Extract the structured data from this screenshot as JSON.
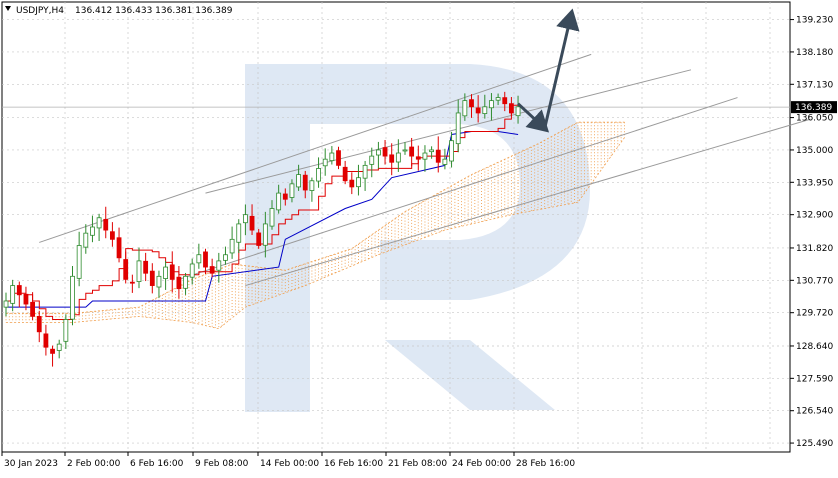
{
  "header": {
    "symbol": "USDJPY,H4",
    "ohlc": "136.412 136.433 136.381 136.389"
  },
  "chart_data": {
    "type": "candlestick",
    "symbol": "USDJPY",
    "timeframe": "H4",
    "title": "USDJPY,H4",
    "y_ticks": [
      "139.230",
      "138.180",
      "137.130",
      "136.050",
      "135.000",
      "133.950",
      "132.900",
      "131.820",
      "130.770",
      "129.720",
      "128.640",
      "127.590",
      "126.540",
      "125.490"
    ],
    "x_ticks": [
      "30 Jan 2023",
      "2 Feb 00:00",
      "6 Feb 16:00",
      "9 Feb 08:00",
      "14 Feb 00:00",
      "16 Feb 16:00",
      "21 Feb 08:00",
      "24 Feb 00:00",
      "28 Feb 16:00"
    ],
    "ylim": [
      125.49,
      139.8
    ],
    "grid": true,
    "current_price": "136.389",
    "colors": {
      "bull": "#2e8b2e",
      "bear": "#e00000",
      "tenkan": "#e00000",
      "kijun": "#0000c8",
      "cloud": "#f0a050",
      "channel": "#9a9a9a",
      "arrow": "#3a4a5a",
      "watermark": "#c8d8ec"
    },
    "close_path": [
      130.1,
      130.6,
      130.3,
      130.0,
      129.6,
      129.1,
      128.6,
      128.4,
      128.7,
      129.5,
      130.9,
      131.9,
      132.3,
      132.5,
      132.8,
      132.4,
      132.1,
      131.5,
      130.8,
      130.7,
      131.4,
      131.0,
      130.6,
      130.9,
      131.2,
      130.8,
      130.5,
      130.9,
      131.3,
      131.6,
      131.2,
      131.0,
      131.4,
      131.6,
      132.1,
      132.6,
      132.9,
      132.4,
      131.9,
      132.6,
      133.1,
      133.6,
      133.4,
      133.9,
      134.2,
      133.7,
      134.0,
      134.4,
      134.7,
      134.9,
      134.5,
      134.0,
      133.8,
      134.1,
      134.5,
      134.8,
      135.0,
      134.8,
      134.6,
      134.9,
      135.0,
      134.8,
      134.7,
      134.9,
      135.0,
      134.6,
      134.7,
      135.3,
      136.2,
      136.6,
      136.4,
      136.2,
      136.4,
      136.6,
      136.7,
      136.5,
      136.2,
      136.4
    ],
    "kijun_path": [
      [
        0,
        129.9
      ],
      [
        12,
        129.9
      ],
      [
        13,
        130.1
      ],
      [
        30,
        130.1
      ],
      [
        31,
        130.9
      ],
      [
        41,
        131.2
      ],
      [
        42,
        132.1
      ],
      [
        51,
        133.1
      ],
      [
        55,
        133.4
      ],
      [
        58,
        134.1
      ],
      [
        66,
        134.5
      ],
      [
        67,
        135.5
      ],
      [
        70,
        135.6
      ],
      [
        74,
        135.6
      ],
      [
        77,
        135.5
      ]
    ],
    "cloud_top": [
      [
        0,
        129.7
      ],
      [
        10,
        129.7
      ],
      [
        20,
        129.9
      ],
      [
        28,
        130.8
      ],
      [
        34,
        131.3
      ],
      [
        42,
        131.1
      ],
      [
        52,
        131.8
      ],
      [
        60,
        133.0
      ],
      [
        70,
        134.2
      ],
      [
        80,
        135.2
      ],
      [
        86,
        135.9
      ],
      [
        93,
        135.9
      ]
    ],
    "cloud_bottom": [
      [
        0,
        129.4
      ],
      [
        10,
        129.4
      ],
      [
        20,
        129.6
      ],
      [
        28,
        129.4
      ],
      [
        32,
        129.2
      ],
      [
        36,
        129.9
      ],
      [
        45,
        130.6
      ],
      [
        56,
        131.6
      ],
      [
        66,
        132.4
      ],
      [
        76,
        132.9
      ],
      [
        86,
        133.3
      ],
      [
        93,
        135.4
      ]
    ],
    "channel_lines": [
      {
        "from": [
          5,
          132.0
        ],
        "to": [
          88,
          138.1
        ]
      },
      {
        "from": [
          30,
          133.6
        ],
        "to": [
          103,
          137.6
        ]
      },
      {
        "from": [
          26,
          130.8
        ],
        "to": [
          110,
          136.7
        ]
      },
      {
        "from": [
          36,
          130.6
        ],
        "to": [
          121,
          136.0
        ]
      }
    ],
    "forecast_arrows": [
      {
        "from": [
          77,
          136.5
        ],
        "to": [
          81,
          135.7
        ]
      },
      {
        "from": [
          81,
          135.7
        ],
        "to": [
          85,
          139.4
        ]
      }
    ]
  }
}
